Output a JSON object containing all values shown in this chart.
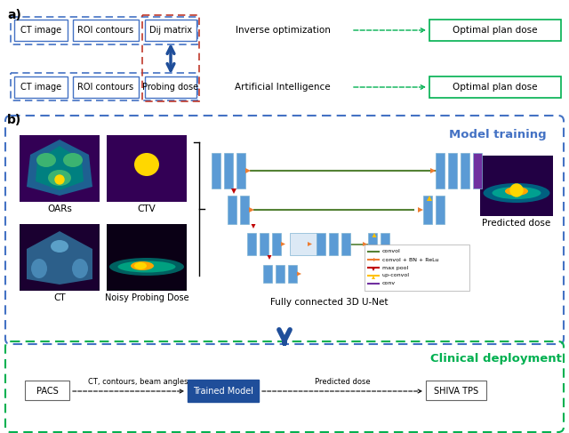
{
  "fig_width": 6.4,
  "fig_height": 4.87,
  "bg_color": "#ffffff",
  "panel_a": {
    "label": "a)",
    "double_arrow_color": "#1f4e9a",
    "blue_dashed": "#4472c4",
    "red_dashed": "#c0392b",
    "green_solid": "#00b050"
  },
  "panel_b": {
    "label": "b)",
    "model_training_label": "Model training",
    "model_training_color": "#4472c4",
    "clinical_deployment_label": "Clinical deployment",
    "clinical_deployment_color": "#00b050",
    "image_labels": [
      "OARs",
      "CTV",
      "CT",
      "Noisy Probing Dose"
    ],
    "unet_label": "Fully connected 3D U-Net",
    "predicted_dose_label": "Predicted dose",
    "pacs_label": "PACS",
    "shiva_label": "SHIVA TPS",
    "trained_model_label": "Trained Model",
    "ct_contours_label": "CT, contours, beam angles",
    "predicted_dose_deploy_label": "Predicted dose",
    "unet_blue": "#5b9bd5",
    "unet_orange": "#ed7d31",
    "unet_red": "#c00000",
    "unet_yellow": "#ffc000",
    "unet_green": "#548235",
    "unet_purple": "#7030a0"
  }
}
